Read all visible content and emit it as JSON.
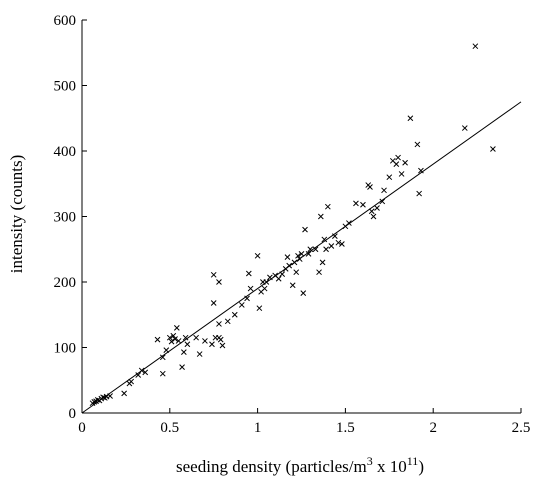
{
  "chart_data": {
    "type": "scatter",
    "title": "",
    "xlabel": {
      "prefix": "seeding density (particles/m",
      "exp1": "3",
      "middle": " x 10",
      "exp2": "11",
      "suffix": ")"
    },
    "ylabel": "intensity (counts)",
    "xlim": [
      0,
      2.5
    ],
    "ylim": [
      0,
      600
    ],
    "xticks": [
      0,
      0.5,
      1,
      1.5,
      2,
      2.5
    ],
    "xtick_labels": [
      "0",
      "0.5",
      "1",
      "1.5",
      "2",
      "2.5"
    ],
    "yticks": [
      0,
      100,
      200,
      300,
      400,
      500,
      600
    ],
    "ytick_labels": [
      "0",
      "100",
      "200",
      "300",
      "400",
      "500",
      "600"
    ],
    "grid": false,
    "legend": "none",
    "marker": "x",
    "colors": {
      "axis": "#000000",
      "marker": "#000000",
      "line": "#000000"
    },
    "fit_line": {
      "x": [
        0,
        2.5
      ],
      "y": [
        0,
        475
      ]
    },
    "points": [
      [
        0.06,
        15
      ],
      [
        0.07,
        17
      ],
      [
        0.08,
        18
      ],
      [
        0.09,
        20
      ],
      [
        0.1,
        19
      ],
      [
        0.11,
        22
      ],
      [
        0.12,
        24
      ],
      [
        0.13,
        23
      ],
      [
        0.14,
        25
      ],
      [
        0.16,
        26
      ],
      [
        0.24,
        30
      ],
      [
        0.27,
        45
      ],
      [
        0.28,
        48
      ],
      [
        0.32,
        58
      ],
      [
        0.34,
        65
      ],
      [
        0.36,
        62
      ],
      [
        0.43,
        112
      ],
      [
        0.46,
        85
      ],
      [
        0.46,
        60
      ],
      [
        0.48,
        96
      ],
      [
        0.5,
        115
      ],
      [
        0.51,
        109
      ],
      [
        0.52,
        118
      ],
      [
        0.53,
        113
      ],
      [
        0.54,
        130
      ],
      [
        0.55,
        110
      ],
      [
        0.57,
        70
      ],
      [
        0.58,
        93
      ],
      [
        0.59,
        115
      ],
      [
        0.6,
        105
      ],
      [
        0.65,
        115
      ],
      [
        0.67,
        90
      ],
      [
        0.7,
        110
      ],
      [
        0.74,
        105
      ],
      [
        0.75,
        211
      ],
      [
        0.75,
        168
      ],
      [
        0.76,
        115
      ],
      [
        0.78,
        115
      ],
      [
        0.78,
        136
      ],
      [
        0.78,
        200
      ],
      [
        0.79,
        112
      ],
      [
        0.8,
        103
      ],
      [
        0.83,
        140
      ],
      [
        0.87,
        150
      ],
      [
        0.91,
        165
      ],
      [
        0.94,
        175
      ],
      [
        0.95,
        213
      ],
      [
        0.96,
        190
      ],
      [
        1.0,
        240
      ],
      [
        1.01,
        160
      ],
      [
        1.02,
        185
      ],
      [
        1.03,
        200
      ],
      [
        1.04,
        190
      ],
      [
        1.05,
        200
      ],
      [
        1.07,
        207
      ],
      [
        1.1,
        210
      ],
      [
        1.12,
        205
      ],
      [
        1.14,
        212
      ],
      [
        1.16,
        220
      ],
      [
        1.17,
        238
      ],
      [
        1.18,
        225
      ],
      [
        1.2,
        195
      ],
      [
        1.21,
        230
      ],
      [
        1.22,
        215
      ],
      [
        1.23,
        240
      ],
      [
        1.24,
        235
      ],
      [
        1.25,
        243
      ],
      [
        1.26,
        183
      ],
      [
        1.27,
        280
      ],
      [
        1.29,
        243
      ],
      [
        1.3,
        250
      ],
      [
        1.33,
        250
      ],
      [
        1.35,
        215
      ],
      [
        1.36,
        300
      ],
      [
        1.37,
        230
      ],
      [
        1.38,
        265
      ],
      [
        1.39,
        250
      ],
      [
        1.4,
        315
      ],
      [
        1.42,
        255
      ],
      [
        1.44,
        270
      ],
      [
        1.46,
        260
      ],
      [
        1.48,
        258
      ],
      [
        1.5,
        285
      ],
      [
        1.52,
        290
      ],
      [
        1.56,
        320
      ],
      [
        1.6,
        318
      ],
      [
        1.63,
        348
      ],
      [
        1.64,
        345
      ],
      [
        1.65,
        308
      ],
      [
        1.66,
        300
      ],
      [
        1.68,
        313
      ],
      [
        1.71,
        323
      ],
      [
        1.72,
        340
      ],
      [
        1.75,
        360
      ],
      [
        1.77,
        385
      ],
      [
        1.79,
        380
      ],
      [
        1.8,
        390
      ],
      [
        1.82,
        365
      ],
      [
        1.84,
        382
      ],
      [
        1.87,
        450
      ],
      [
        1.91,
        410
      ],
      [
        1.92,
        335
      ],
      [
        1.93,
        370
      ],
      [
        2.18,
        435
      ],
      [
        2.24,
        560
      ],
      [
        2.34,
        403
      ]
    ]
  }
}
